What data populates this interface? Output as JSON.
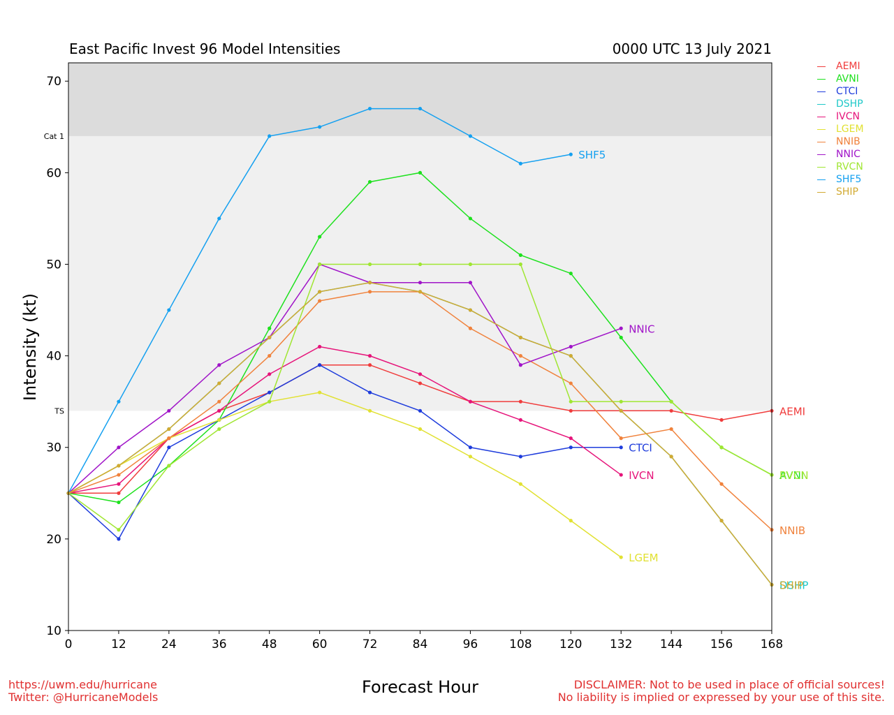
{
  "title": "East Pacific Invest 96 Model Intensities",
  "datetime": "0000 UTC 13 July 2021",
  "footer": {
    "url": "https://uwm.edu/hurricane",
    "twitter": "Twitter: @HurricaneModels",
    "disclaimer1": "DISCLAIMER: Not to be used in place of official sources!",
    "disclaimer2": "No liability is implied or expressed by your use of this site."
  },
  "colors": {
    "accent": "#e03030",
    "ts_band": "#f0f0f0",
    "cat1_band": "#dcdcdc"
  },
  "chart_data": {
    "type": "line",
    "title": "East Pacific Invest 96 Model Intensities",
    "xlabel": "Forecast Hour",
    "ylabel": "Intensity (kt)",
    "xlim": [
      0,
      168
    ],
    "ylim": [
      10,
      72
    ],
    "xticks": [
      0,
      12,
      24,
      36,
      48,
      60,
      72,
      84,
      96,
      108,
      120,
      132,
      144,
      156,
      168
    ],
    "yticks": [
      10,
      20,
      30,
      40,
      50,
      60,
      70
    ],
    "thresholds": [
      {
        "label": "TS",
        "value": 34
      },
      {
        "label": "Cat 1",
        "value": 64
      }
    ],
    "legend_position": "right",
    "grid": false,
    "x": [
      0,
      12,
      24,
      36,
      48,
      60,
      72,
      84,
      96,
      108,
      120,
      132,
      144,
      156,
      168
    ],
    "series": [
      {
        "name": "AEMI",
        "color": "#f03c3c",
        "values": [
          25,
          25,
          31,
          34,
          36,
          39,
          39,
          37,
          35,
          35,
          34,
          34,
          34,
          33,
          34
        ]
      },
      {
        "name": "AVNI",
        "color": "#1ee11e",
        "values": [
          25,
          24,
          28,
          33,
          43,
          53,
          59,
          60,
          55,
          51,
          49,
          42,
          35,
          30,
          27
        ]
      },
      {
        "name": "CTCI",
        "color": "#1e3cdc",
        "values": [
          25,
          20,
          30,
          33,
          36,
          39,
          36,
          34,
          30,
          29,
          30,
          30,
          null,
          null,
          null
        ]
      },
      {
        "name": "DSHP",
        "color": "#1ec8c8",
        "values": [
          25,
          28,
          32,
          37,
          42,
          47,
          48,
          47,
          45,
          42,
          40,
          34,
          29,
          22,
          15
        ]
      },
      {
        "name": "IVCN",
        "color": "#e6147a",
        "values": [
          25,
          26,
          31,
          34,
          38,
          41,
          40,
          38,
          35,
          33,
          31,
          27,
          null,
          null,
          null
        ]
      },
      {
        "name": "LGEM",
        "color": "#e1e132",
        "values": [
          25,
          28,
          31,
          33,
          35,
          36,
          34,
          32,
          29,
          26,
          22,
          18,
          null,
          null,
          null
        ]
      },
      {
        "name": "NNIB",
        "color": "#f0823c",
        "values": [
          25,
          27,
          31,
          35,
          40,
          46,
          47,
          47,
          43,
          40,
          37,
          31,
          32,
          26,
          21
        ]
      },
      {
        "name": "NNIC",
        "color": "#a014c8",
        "values": [
          25,
          30,
          34,
          39,
          42,
          50,
          48,
          48,
          48,
          39,
          41,
          43,
          null,
          null,
          null
        ]
      },
      {
        "name": "RVCN",
        "color": "#a0e632",
        "values": [
          25,
          21,
          28,
          32,
          35,
          50,
          50,
          50,
          50,
          50,
          35,
          35,
          35,
          30,
          27
        ]
      },
      {
        "name": "SHF5",
        "color": "#14a0f0",
        "values": [
          25,
          35,
          45,
          55,
          64,
          65,
          67,
          67,
          64,
          61,
          62,
          null,
          null,
          null,
          null
        ]
      },
      {
        "name": "SHIP",
        "color": "#d2aa32",
        "values": [
          25,
          28,
          32,
          37,
          42,
          47,
          48,
          47,
          45,
          42,
          40,
          34,
          29,
          22,
          15
        ]
      }
    ],
    "end_labels": [
      "SHF5",
      "NNIC",
      "AEMI",
      "CTCI",
      "AVNI",
      "RVCN",
      "IVCN",
      "NNIB",
      "LGEM",
      "DSHP",
      "SHIP"
    ]
  }
}
